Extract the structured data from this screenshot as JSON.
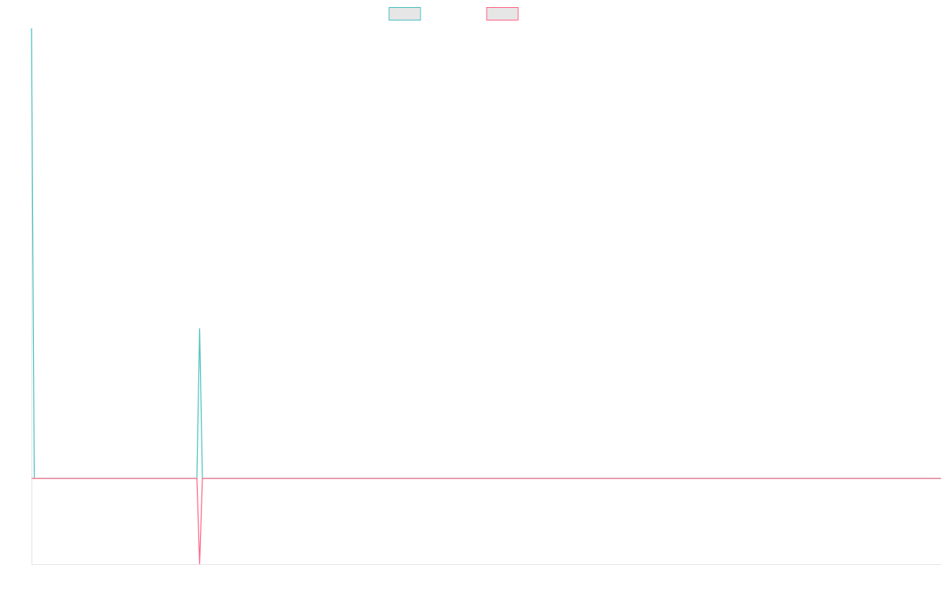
{
  "chart_data": {
    "type": "line",
    "x": [
      0,
      1,
      60,
      61,
      62,
      330
    ],
    "xlim": [
      0,
      330
    ],
    "ylim": [
      -20,
      105
    ],
    "legend": "top",
    "series": [
      {
        "color": "#4bc0c0",
        "values": [
          105,
          0,
          0,
          35,
          0,
          0
        ]
      },
      {
        "color": "#ff6384",
        "values": [
          0,
          0,
          0,
          -20,
          0,
          0
        ]
      }
    ]
  }
}
